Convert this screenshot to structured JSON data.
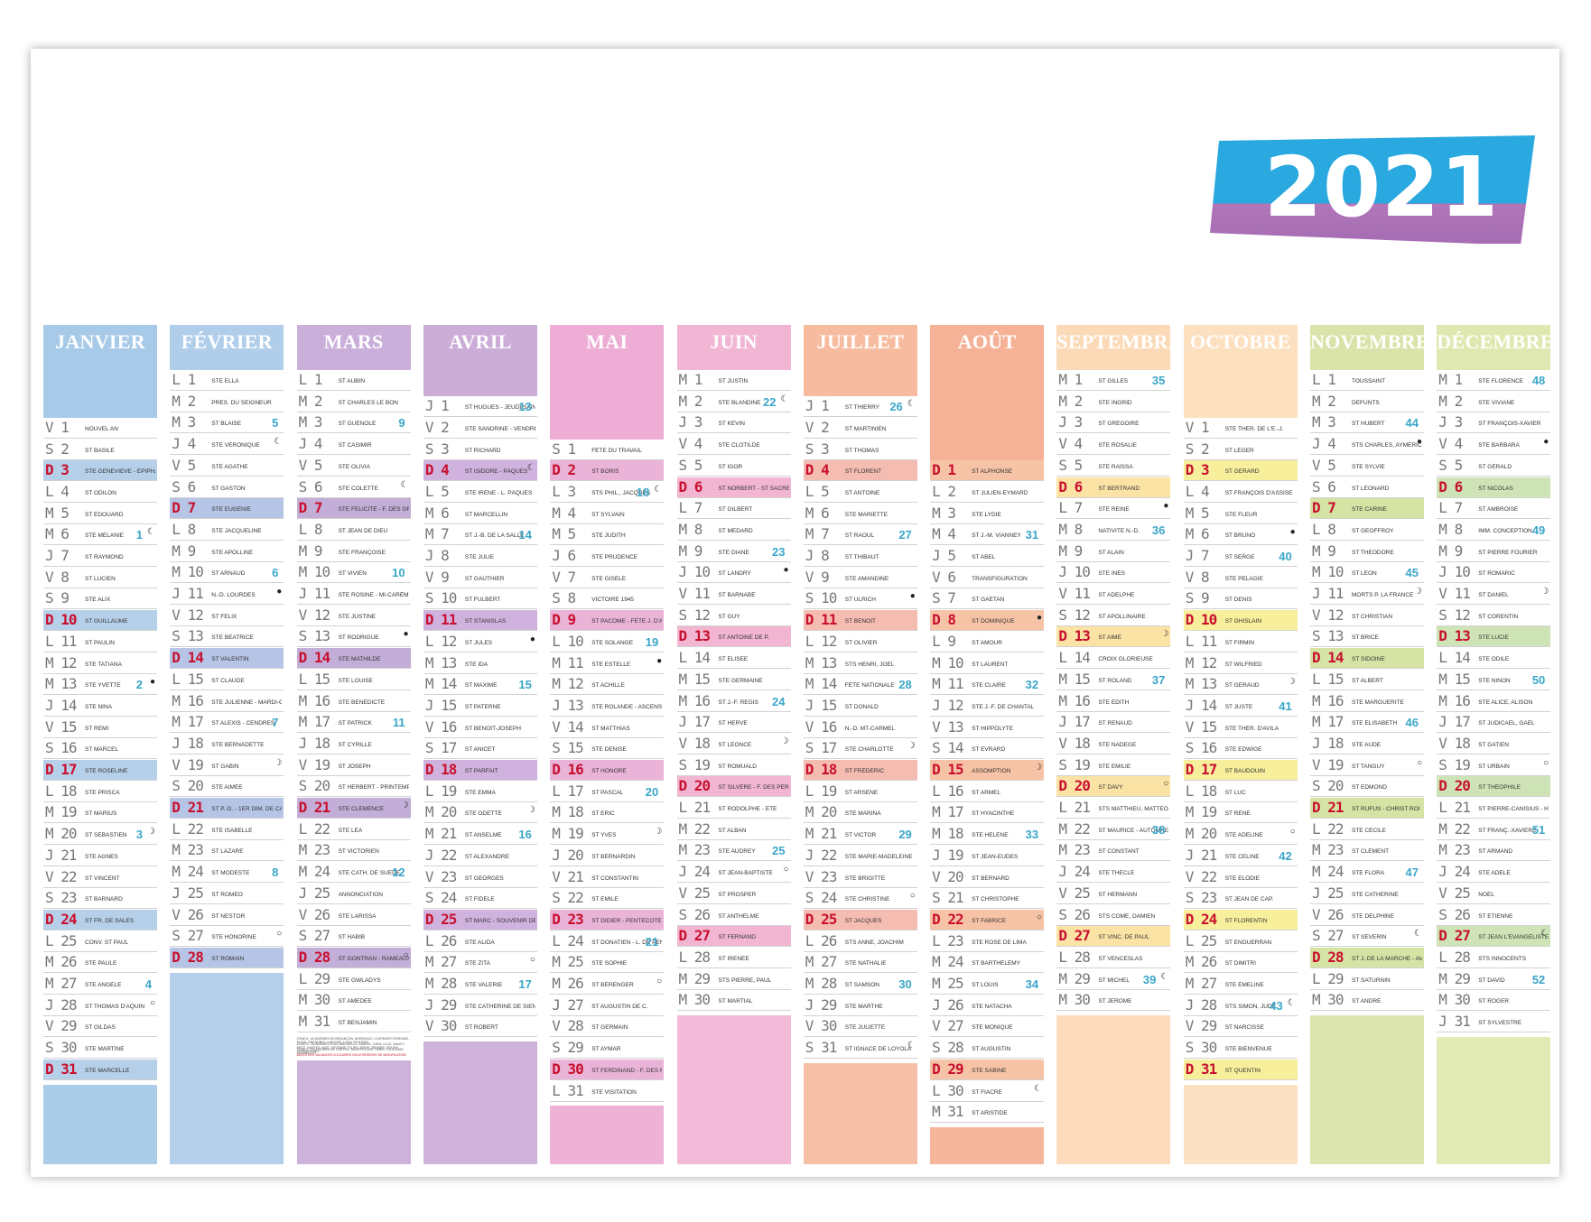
{
  "calendar": {
    "year": "2021",
    "legend": [
      "ZONE A : ACADÉMIES DE BESANÇON, BORDEAUX, CLERMONT-FERRAND, DIJON, GRENOBLE, LIMOGES, LYON, POITIERS",
      "ZONE B : ACADÉMIES D'AIX-MARSEILLE, AMIENS, CAEN, LILLE, NANCY-METZ, NANTES, NICE, ORLÉANS-TOURS, REIMS, RENNES, ROUEN, STRASBOURG",
      "ZONE C : ACADÉMIES DE CRÉTEIL, MONTPELLIER, PARIS, TOULOUSE, VERSAILLES",
      "DATES DES VACANCES SCOLAIRES SOUS RÉSERVE DE MODIFICATION"
    ],
    "colors": {
      "sunday": "#c8102e",
      "week_number": "#3aa6c8",
      "banner_top": "#2aa9e0",
      "banner_bottom": "#b076b8"
    },
    "months": [
      {
        "name": "JANVIER",
        "first": "V",
        "days": 31,
        "color": "#9cc4e6",
        "hl": "#b6d0ea",
        "saints": [
          "NOUVEL AN",
          "ST BASILE",
          "STE GENEVIÈVE - ÉPIPHANIE",
          "ST ODILON",
          "ST ÉDOUARD",
          "STE MÉLANIE",
          "ST RAYMOND",
          "ST LUCIEN",
          "STE ALIX",
          "ST GUILLAUME",
          "ST PAULIN",
          "STE TATIANA",
          "STE YVETTE",
          "STE NINA",
          "ST RÉMI",
          "ST MARCEL",
          "STE ROSELINE",
          "STE PRISCA",
          "ST MARIUS",
          "ST SÉBASTIEN",
          "STE AGNÈS",
          "ST VINCENT",
          "ST BARNARD",
          "ST FR. DE SALES",
          "CONV. ST PAUL",
          "STE PAULE",
          "STE ANGÈLE",
          "ST THOMAS D'AQUIN",
          "ST GILDAS",
          "STE MARTINE",
          "STE MARCELLE"
        ],
        "weeks": {
          "6": "1",
          "13": "2",
          "20": "3",
          "27": "4"
        },
        "moons": {
          "6": "☾",
          "13": "●",
          "20": "☽",
          "28": "○"
        }
      },
      {
        "name": "FÉVRIER",
        "first": "L",
        "days": 28,
        "color": "#a7c8e8",
        "hl": "#b6c4e6",
        "saints": [
          "STE ELLA",
          "PRÉS. DU SEIGNEUR",
          "ST BLAISE",
          "STE VÉRONIQUE",
          "STE AGATHE",
          "ST GASTON",
          "STE EUGÉNIE",
          "STE JACQUELINE",
          "STE APOLLINE",
          "ST ARNAUD",
          "N.-D. LOURDES",
          "ST FÉLIX",
          "STE BÉATRICE",
          "ST VALENTIN",
          "ST CLAUDE",
          "STE JULIENNE - MARDI-GRAS",
          "ST ALEXIS - CENDRES",
          "STE BERNADETTE",
          "ST GABIN",
          "STE AIMÉE",
          "ST P.-D. - 1ER DIM. DE CARÊME",
          "STE ISABELLE",
          "ST LAZARE",
          "ST MODESTE",
          "ST ROMÉO",
          "ST NESTOR",
          "STE HONORINE",
          "ST ROMAIN"
        ],
        "weeks": {
          "3": "5",
          "10": "6",
          "17": "7",
          "24": "8"
        },
        "moons": {
          "4": "☾",
          "11": "●",
          "19": "☽",
          "27": "○"
        }
      },
      {
        "name": "MARS",
        "first": "L",
        "days": 31,
        "color": "#c4a6d6",
        "hl": "#c3aed8",
        "saints": [
          "ST AUBIN",
          "ST CHARLES LE BON",
          "ST GUÉNOLÉ",
          "ST CASIMIR",
          "STE OLIVIA",
          "STE COLETTE",
          "STE FÉLICITÉ - F. DES GRDS-MÈRES",
          "ST JEAN DE DIEU",
          "STE FRANÇOISE",
          "ST VIVIEN",
          "STE ROSINE - MI-CARÊME",
          "STE JUSTINE",
          "ST RODRIGUE",
          "STE MATHILDE",
          "STE LOUISE",
          "STE BÉNÉDICTE",
          "ST PATRICK",
          "ST CYRILLE",
          "ST JOSEPH",
          "ST HERBERT - PRINTEMPS",
          "STE CLÉMENCE",
          "STE LÉA",
          "ST VICTORIEN",
          "STE CATH. DE SUÈDE",
          "ANNONCIATION",
          "STE LARISSA",
          "ST HABIB",
          "ST GONTRAN - RAMEAUX",
          "STE GWLADYS",
          "ST AMÉDÉE",
          "ST BENJAMIN"
        ],
        "weeks": {
          "3": "9",
          "10": "10",
          "17": "11",
          "24": "12"
        },
        "moons": {
          "6": "☾",
          "13": "●",
          "21": "☽",
          "28": "○"
        }
      },
      {
        "name": "AVRIL",
        "first": "J",
        "days": 30,
        "color": "#c6a4d4",
        "hl": "#d0b2de",
        "saints": [
          "ST HUGUES - JEUDI SAINT",
          "STE SANDRINE - VENDREDI SAINT",
          "ST RICHARD",
          "ST ISIDORE - PÂQUES",
          "STE IRÈNE - L. PÂQUES",
          "ST MARCELLIN",
          "ST J.-B. DE LA SALLE",
          "STE JULIE",
          "ST GAUTHIER",
          "ST FULBERT",
          "ST STANISLAS",
          "ST JULES",
          "STE IDA",
          "ST MAXIME",
          "ST PATERNE",
          "ST BENOÎT-JOSEPH",
          "ST ANICET",
          "ST PARFAIT",
          "STE EMMA",
          "STE ODETTE",
          "ST ANSELME",
          "ST ALEXANDRE",
          "ST GEORGES",
          "ST FIDÈLE",
          "ST MARC - SOUVENIR DÉPORTÉS",
          "STE ALIDA",
          "STE ZITA",
          "STE VALÉRIE",
          "STE CATHERINE DE SIENNE",
          "ST ROBERT"
        ],
        "weeks": {
          "1": "13",
          "7": "14",
          "14": "15",
          "21": "16",
          "28": "17"
        },
        "moons": {
          "4": "☾",
          "12": "●",
          "20": "☽",
          "27": "○"
        }
      },
      {
        "name": "MAI",
        "first": "S",
        "days": 31,
        "color": "#eba4cf",
        "hl": "#eab3d8",
        "saints": [
          "FÊTE DU TRAVAIL",
          "ST BORIS",
          "STS PHIL., JACQUES",
          "ST SYLVAIN",
          "STE JUDITH",
          "STE PRUDENCE",
          "STE GISÈLE",
          "VICTOIRE 1945",
          "ST PACÔME - FÊTE J. D'ARC",
          "STE SOLANGE",
          "STE ESTELLE",
          "ST ACHILLE",
          "STE ROLANDE - ASCENSION",
          "ST MATTHIAS",
          "STE DENISE",
          "ST HONORÉ",
          "ST PASCAL",
          "ST ÉRIC",
          "ST YVES",
          "ST BERNARDIN",
          "ST CONSTANTIN",
          "ST ÉMILE",
          "ST DIDIER - PENTECÔTE",
          "ST DONATIEN - L. DE PENTECÔTE",
          "STE SOPHIE",
          "ST BÉRENGER",
          "ST AUGUSTIN DE C.",
          "ST GERMAIN",
          "ST AYMAR",
          "ST FERDINAND - F. DES MÈRES",
          "STE VISITATION"
        ],
        "weeks": {
          "3": "18",
          "10": "19",
          "17": "20",
          "24": "21"
        },
        "moons": {
          "3": "☾",
          "11": "●",
          "19": "☽",
          "26": "○"
        }
      },
      {
        "name": "JUIN",
        "first": "M",
        "days": 30,
        "color": "#f0aed0",
        "hl": "#f2b6d2",
        "saints": [
          "ST JUSTIN",
          "STE BLANDINE",
          "ST KÉVIN",
          "STE CLOTILDE",
          "ST IGOR",
          "ST NORBERT - ST SACREMENT",
          "ST GILBERT",
          "ST MÉDARD",
          "STE DIANE",
          "ST LANDRY",
          "ST BARNABÉ",
          "ST GUY",
          "ST ANTOINE DE P.",
          "ST ÉLISÉE",
          "STE GERMAINE",
          "ST J.-F. RÉGIS",
          "ST HERVÉ",
          "ST LÉONCE",
          "ST ROMUALD",
          "ST SILVÈRE - F. DES PÈRES",
          "ST RODOLPHE - ÉTÉ",
          "ST ALBAN",
          "STE AUDREY",
          "ST JEAN-BAPTISTE",
          "ST PROSPER",
          "ST ANTHELME",
          "ST FERNAND",
          "ST IRÉNÉE",
          "STS PIERRE, PAUL",
          "ST MARTIAL"
        ],
        "weeks": {
          "2": "22",
          "9": "23",
          "16": "24",
          "23": "25"
        },
        "moons": {
          "2": "☾",
          "10": "●",
          "18": "☽",
          "24": "○"
        }
      },
      {
        "name": "JUILLET",
        "first": "J",
        "days": 31,
        "color": "#f6b596",
        "hl": "#f5bcb2",
        "saints": [
          "ST THIERRY",
          "ST MARTINIEN",
          "ST THOMAS",
          "ST FLORENT",
          "ST ANTOINE",
          "STE MARIETTE",
          "ST RAOUL",
          "ST THIBAUT",
          "STE AMANDINE",
          "ST ULRICH",
          "ST BENOÎT",
          "ST OLIVIER",
          "STS HENRI, JOËL",
          "FÊTE NATIONALE",
          "ST DONALD",
          "N.-D. MT-CARMEL",
          "STE CHARLOTTE",
          "ST FRÉDÉRIC",
          "ST ARSÈNE",
          "STE MARINA",
          "ST VICTOR",
          "STE MARIE-MADELEINE",
          "STE BRIGITTE",
          "STE CHRISTINE",
          "ST JACQUES",
          "STS ANNE, JOACHIM",
          "STE NATHALIE",
          "ST SAMSON",
          "STE MARTHE",
          "STE JULIETTE",
          "ST IGNACE DE LOYOLA"
        ],
        "weeks": {
          "1": "26",
          "7": "27",
          "14": "28",
          "21": "29",
          "28": "30"
        },
        "moons": {
          "1": "☾",
          "10": "●",
          "17": "☽",
          "24": "○",
          "31": "☾"
        }
      },
      {
        "name": "AOÛT",
        "first": "D",
        "days": 31,
        "color": "#f4a98a",
        "hl": "#f7c3a6",
        "saints": [
          "ST ALPHONSE",
          "ST JULIEN-EYMARD",
          "STE LYDIE",
          "ST J.-M. VIANNEY",
          "ST ABEL",
          "TRANSFIGURATION",
          "ST GAÉTAN",
          "ST DOMINIQUE",
          "ST AMOUR",
          "ST LAURENT",
          "STE CLAIRE",
          "STE J.-F. DE CHANTAL",
          "ST HIPPOLYTE",
          "ST ÉVRARD",
          "ASSOMPTION",
          "ST ARMEL",
          "ST HYACINTHE",
          "STE HÉLÈNE",
          "ST JEAN-EUDES",
          "ST BERNARD",
          "ST CHRISTOPHE",
          "ST FABRICE",
          "STE ROSE DE LIMA",
          "ST BARTHÉLÉMY",
          "ST LOUIS",
          "STE NATACHA",
          "STE MONIQUE",
          "ST AUGUSTIN",
          "STE SABINE",
          "ST FIACRE",
          "ST ARISTIDE"
        ],
        "weeks": {
          "4": "31",
          "11": "32",
          "18": "33",
          "25": "34"
        },
        "moons": {
          "8": "●",
          "15": "☽",
          "22": "○",
          "30": "☾"
        }
      },
      {
        "name": "SEPTEMBRE",
        "first": "M",
        "days": 30,
        "color": "#fbd6b0",
        "hl": "#fbe3a6",
        "saints": [
          "ST GILLES",
          "STE INGRID",
          "ST GRÉGOIRE",
          "STE ROSALIE",
          "STE RAÏSSA",
          "ST BERTRAND",
          "STE REINE",
          "NATIVITÉ N.-D.",
          "ST ALAIN",
          "STE INÈS",
          "ST ADELPHE",
          "ST APOLLINAIRE",
          "ST AIMÉ",
          "CROIX GLORIEUSE",
          "ST ROLAND",
          "STE ÉDITH",
          "ST RENAUD",
          "STE NADÈGE",
          "STE ÉMILIE",
          "ST DAVY",
          "STS MATTHIEU, MATTÉO",
          "ST MAURICE - AUTOMNE",
          "ST CONSTANT",
          "STE THÈCLE",
          "ST HERMANN",
          "STS CÔME, DAMIEN",
          "ST VINC. DE PAUL",
          "ST VENCESLAS",
          "ST MICHEL",
          "ST JÉRÔME"
        ],
        "weeks": {
          "1": "35",
          "8": "36",
          "15": "37",
          "22": "38",
          "29": "39"
        },
        "moons": {
          "7": "●",
          "13": "☽",
          "20": "○",
          "29": "☾"
        }
      },
      {
        "name": "OCTOBRE",
        "first": "V",
        "days": 31,
        "color": "#fcdcb8",
        "hl": "#f7ef9c",
        "saints": [
          "STE THÉR. DE L'E.-J.",
          "ST LÉGER",
          "ST GÉRARD",
          "ST FRANÇOIS D'ASSISE",
          "STE FLEUR",
          "ST BRUNO",
          "ST SERGE",
          "STE PÉLAGIE",
          "ST DENIS",
          "ST GHISLAIN",
          "ST FIRMIN",
          "ST WILFRIED",
          "ST GÉRAUD",
          "ST JUSTE",
          "STE THÉR. D'AVILA",
          "STE EDWIGE",
          "ST BAUDOUIN",
          "ST LUC",
          "ST RENÉ",
          "STE ADELINE",
          "STE CÉLINE",
          "STE ÉLODIE",
          "ST JEAN DE CAP.",
          "ST FLORENTIN",
          "ST ENGUERRAN",
          "ST DIMITRI",
          "STE ÉMELINE",
          "STS SIMON, JUDE",
          "ST NARCISSE",
          "STE BIENVENUE",
          "ST QUENTIN"
        ],
        "weeks": {
          "7": "40",
          "14": "41",
          "21": "42",
          "28": "43"
        },
        "moons": {
          "6": "●",
          "13": "☽",
          "20": "○",
          "28": "☾"
        }
      },
      {
        "name": "NOVEMBRE",
        "first": "L",
        "days": 30,
        "color": "#d6e0a0",
        "hl": "#d5e3a4",
        "saints": [
          "TOUSSAINT",
          "DÉFUNTS",
          "ST HUBERT",
          "STS CHARLES, AYMERIC",
          "STE SYLVIE",
          "ST LÉONARD",
          "STE CARINE",
          "ST GEOFFROY",
          "ST THÉODORE",
          "ST LÉON",
          "MORTS P. LA FRANCE",
          "ST CHRISTIAN",
          "ST BRICE",
          "ST SIDOINE",
          "ST ALBERT",
          "STE MARGUERITE",
          "STE ÉLISABETH",
          "STE AUDE",
          "ST TANGUY",
          "ST EDMOND",
          "ST RUFUS - CHRIST ROI",
          "STE CÉCILE",
          "ST CLÉMENT",
          "STE FLORA",
          "STE CATHERINE",
          "STE DELPHINE",
          "ST SÉVERIN",
          "ST J. DE LA MARCHE - AVENT",
          "ST SATURNIN",
          "ST ANDRÉ"
        ],
        "weeks": {
          "3": "44",
          "10": "45",
          "17": "46",
          "24": "47"
        },
        "moons": {
          "4": "●",
          "11": "☽",
          "19": "○",
          "27": "☾"
        }
      },
      {
        "name": "DÉCEMBRE",
        "first": "M",
        "days": 31,
        "color": "#dde6a8",
        "hl": "#cfe4b6",
        "saints": [
          "STE FLORENCE",
          "STE VIVIANE",
          "ST FRANÇOIS-XAVIER",
          "STE BARBARA",
          "ST GÉRALD",
          "ST NICOLAS",
          "ST AMBROISE",
          "IMM. CONCEPTION",
          "ST PIERRE FOURIER",
          "ST ROMARIC",
          "ST DANIEL",
          "ST CORENTIN",
          "STE LUCIE",
          "STE ODILE",
          "STE NINON",
          "STE ALICE, ALISON",
          "ST JUDICAËL, GAËL",
          "ST GATIEN",
          "ST URBAIN",
          "ST THÉOPHILE",
          "ST PIERRE-CANISIUS - HIVER",
          "ST FRANÇ.-XAVIÈRE",
          "ST ARMAND",
          "STE ADÈLE",
          "NOËL",
          "ST ÉTIENNE",
          "ST JEAN L'ÉVANGÉLISTE",
          "STS INNOCENTS",
          "ST DAVID",
          "ST ROGER",
          "ST SYLVESTRE"
        ],
        "weeks": {
          "1": "48",
          "8": "49",
          "15": "50",
          "22": "51",
          "29": "52"
        },
        "moons": {
          "4": "●",
          "11": "☽",
          "19": "○",
          "27": "☾"
        }
      }
    ]
  }
}
